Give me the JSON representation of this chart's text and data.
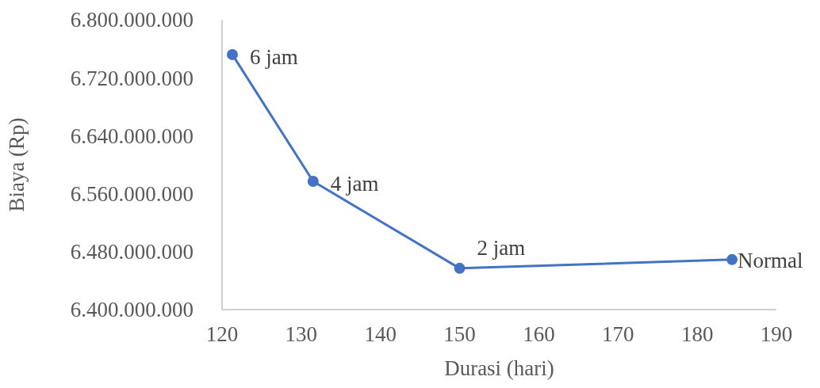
{
  "chart_data": {
    "type": "line",
    "xlabel": "Durasi (hari)",
    "ylabel": "Biaya (Rp)",
    "x": [
      121.3,
      131.5,
      150,
      184.4
    ],
    "series": [
      {
        "color": "#4472c4",
        "values": [
          6752000000,
          6577000000,
          6457000000,
          6469000000
        ]
      }
    ],
    "marker": "circle",
    "grid": false,
    "xlim": [
      120,
      190
    ],
    "xticks": [
      120,
      130,
      140,
      150,
      160,
      170,
      180,
      190
    ],
    "ylim": [
      6400000000,
      6800000000
    ],
    "yticks": [
      {
        "value": 6400000000,
        "label": "6.400.000.000"
      },
      {
        "value": 6480000000,
        "label": "6.480.000.000"
      },
      {
        "value": 6560000000,
        "label": "6.560.000.000"
      },
      {
        "value": 6640000000,
        "label": "6.640.000.000"
      },
      {
        "value": 6720000000,
        "label": "6.720.000.000"
      },
      {
        "value": 6800000000,
        "label": "6.800.000.000"
      }
    ],
    "annotations": [
      {
        "text": "6 jam",
        "x": 121.3,
        "y": 6752000000
      },
      {
        "text": "4 jam",
        "x": 131.5,
        "y": 6577000000
      },
      {
        "text": "2 jam",
        "x": 150,
        "y": 6457000000
      },
      {
        "text": "Normal",
        "x": 184.4,
        "y": 6469000000
      }
    ]
  }
}
